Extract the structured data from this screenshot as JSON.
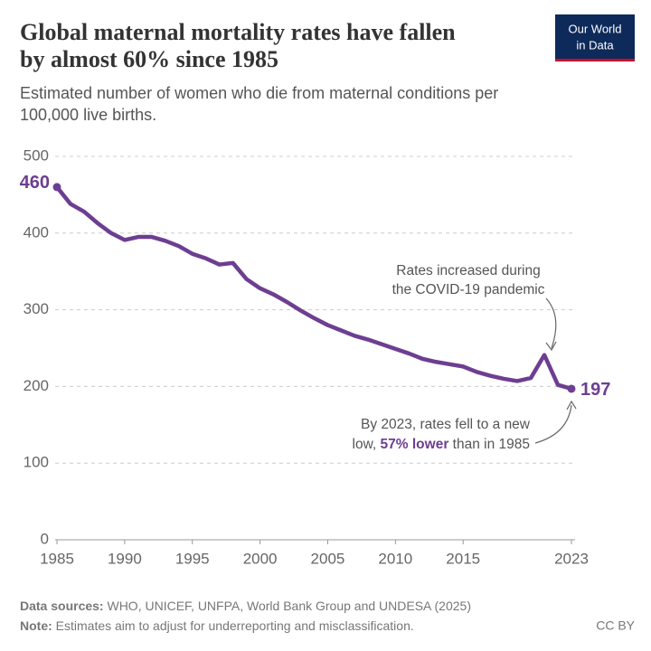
{
  "chart_data": {
    "type": "line",
    "title": [
      "Global maternal mortality rates have fallen",
      "by almost 60% since 1985"
    ],
    "subtitle": [
      "Estimated number of women who die from maternal conditions per",
      "100,000 live births."
    ],
    "logo": [
      "Our World",
      "in Data"
    ],
    "x": [
      1985,
      1986,
      1987,
      1988,
      1989,
      1990,
      1991,
      1992,
      1993,
      1994,
      1995,
      1996,
      1997,
      1998,
      1999,
      2000,
      2001,
      2002,
      2003,
      2004,
      2005,
      2006,
      2007,
      2008,
      2009,
      2010,
      2011,
      2012,
      2013,
      2014,
      2015,
      2016,
      2017,
      2018,
      2019,
      2020,
      2021,
      2022,
      2023
    ],
    "series": [
      {
        "name": "Maternal mortality rate",
        "color": "#6d3e91",
        "values": [
          460,
          438,
          428,
          413,
          400,
          391,
          395,
          395,
          390,
          383,
          373,
          367,
          359,
          361,
          340,
          328,
          320,
          310,
          299,
          289,
          280,
          273,
          266,
          261,
          255,
          249,
          243,
          236,
          232,
          229,
          226,
          219,
          214,
          210,
          207,
          211,
          241,
          202,
          197
        ]
      }
    ],
    "xlim": [
      1985,
      2023
    ],
    "xticks": [
      1985,
      1990,
      1995,
      2000,
      2005,
      2010,
      2015,
      2023
    ],
    "ylim": [
      0,
      500
    ],
    "yticks": [
      0,
      100,
      200,
      300,
      400,
      500
    ],
    "grid": true,
    "annotations": {
      "covid": [
        "Rates increased during",
        "the COVID-19 pandemic"
      ],
      "low": {
        "line1": "By 2023, rates fell to a new",
        "line2": [
          "low, ",
          "57% lower",
          " than in 1985"
        ]
      }
    },
    "footer": {
      "sources_label": "Data sources:",
      "sources": " WHO, UNICEF, UNFPA, World Bank Group and UNDESA (2025)",
      "note_label": "Note:",
      "note": " Estimates aim to adjust for underreporting and misclassification.",
      "license": "CC BY"
    }
  }
}
